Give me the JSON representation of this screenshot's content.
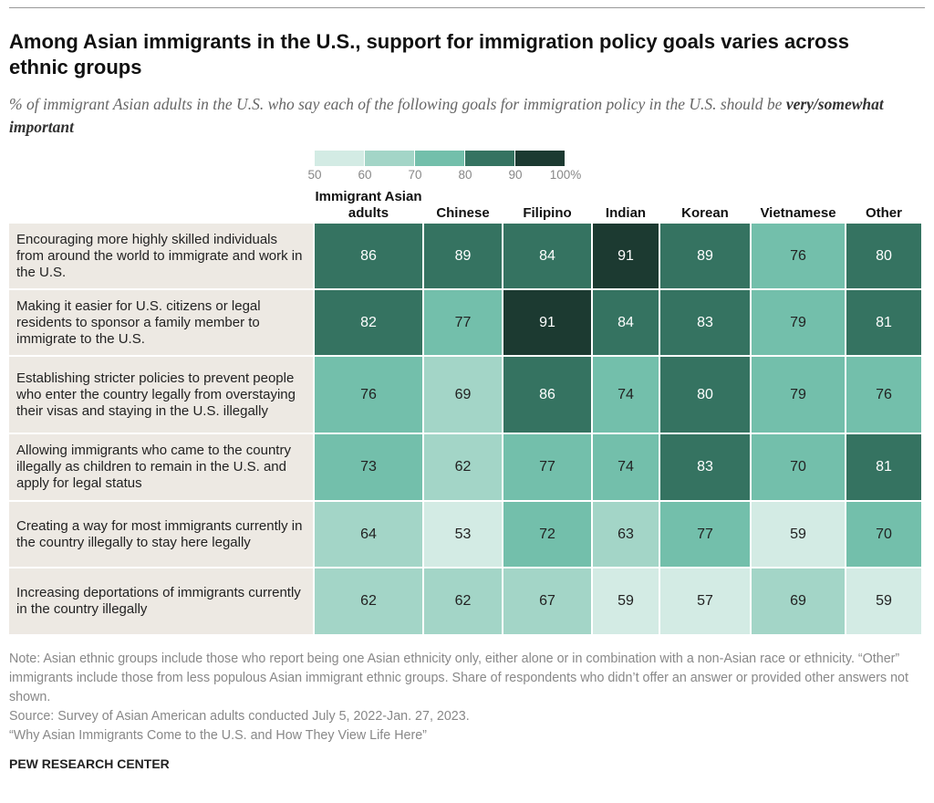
{
  "chart_data": {
    "type": "heatmap",
    "title": "Among Asian immigrants in the U.S., support for immigration policy goals varies across ethnic groups",
    "subtitle": "% of immigrant Asian adults in the U.S. who say each of the following goals for immigration policy in the U.S. should be",
    "subtitle_emphasis": "very/somewhat important",
    "columns": [
      "Immigrant Asian adults",
      "Chinese",
      "Filipino",
      "Indian",
      "Korean",
      "Vietnamese",
      "Other"
    ],
    "rows": [
      "Encouraging more highly skilled individuals from around the world to immigrate and work in the U.S.",
      "Making it easier for U.S. citizens or legal residents to sponsor a family member to immigrate to the U.S.",
      "Establishing stricter policies to prevent people who enter the country legally from overstaying their visas and staying in the U.S. illegally",
      "Allowing immigrants who came to the country illegally as children to remain in the U.S. and apply for legal status",
      "Creating a way for most immigrants currently in the country illegally to stay here legally",
      "Increasing deportations of immigrants currently in the country illegally"
    ],
    "values": [
      [
        86,
        89,
        84,
        91,
        89,
        76,
        80
      ],
      [
        82,
        77,
        91,
        84,
        83,
        79,
        81
      ],
      [
        76,
        69,
        86,
        74,
        80,
        79,
        76
      ],
      [
        73,
        62,
        77,
        74,
        83,
        70,
        81
      ],
      [
        64,
        53,
        72,
        63,
        77,
        59,
        70
      ],
      [
        62,
        62,
        67,
        59,
        57,
        69,
        59
      ]
    ],
    "color_bins": [
      50,
      60,
      70,
      80,
      90,
      {
        "value": 100,
        "label": "100%"
      }
    ],
    "colors": [
      "#d3ebe4",
      "#a3d5c7",
      "#73bfab",
      "#357361",
      "#1c3a31"
    ],
    "note": "Note: Asian ethnic groups include those who report being one Asian ethnicity only, either alone or in combination with a non-Asian race or ethnicity. “Other” immigrants include those from less populous Asian immigrant ethnic groups. Share of respondents who didn’t offer an answer or provided other answers not shown.",
    "source": "Source: Survey of Asian American adults conducted July 5, 2022-Jan. 27, 2023.",
    "report": "“Why Asian Immigrants Come to the U.S. and How They View Life Here”",
    "credit": "PEW RESEARCH CENTER"
  }
}
